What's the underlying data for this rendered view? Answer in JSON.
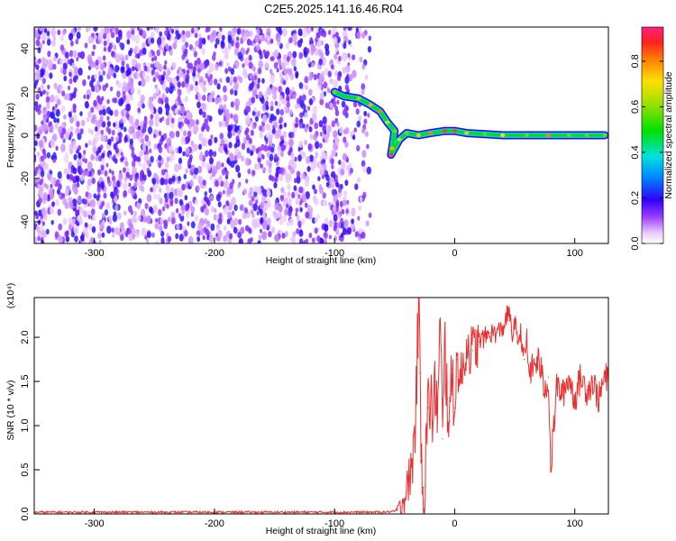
{
  "figure_title": "C2E5.2025.141.16.46.R04",
  "chart_data": [
    {
      "type": "heatmap",
      "title": "",
      "xlabel": "Height of straight line (km)",
      "ylabel": "Frequency (Hz)",
      "xlim": [
        -350,
        128
      ],
      "ylim": [
        -50,
        50
      ],
      "xticks": [
        -300,
        -200,
        -100,
        0,
        100
      ],
      "yticks": [
        -40,
        -20,
        0,
        20,
        40
      ],
      "xtick_labels": [
        "-300",
        "-200",
        "-100",
        "0",
        "100"
      ],
      "ytick_labels": [
        "-40",
        "-20",
        "0",
        "20",
        "40"
      ],
      "colorbar": {
        "label": "Normalized spectral amplitude",
        "range": [
          0,
          0.95
        ],
        "ticks": [
          0.0,
          0.2,
          0.4,
          0.6,
          0.8
        ],
        "tick_labels": [
          "0.0",
          "0.2",
          "0.4",
          "0.6",
          "0.8"
        ],
        "colormap": "rainbow-to-red"
      },
      "noise_region": {
        "x": [
          -350,
          -70
        ],
        "y": [
          -50,
          50
        ],
        "amplitude": [
          0.05,
          0.2
        ]
      },
      "ridge": [
        {
          "x": -100,
          "y": 20,
          "amp": 0.6
        },
        {
          "x": -92,
          "y": 18,
          "amp": 0.5
        },
        {
          "x": -80,
          "y": 17,
          "amp": 0.65
        },
        {
          "x": -70,
          "y": 14,
          "amp": 0.8
        },
        {
          "x": -62,
          "y": 11,
          "amp": 0.85
        },
        {
          "x": -56,
          "y": 6,
          "amp": 0.7
        },
        {
          "x": -50,
          "y": 2,
          "amp": 0.6
        },
        {
          "x": -52,
          "y": -6,
          "amp": 0.8
        },
        {
          "x": -53,
          "y": -9,
          "amp": 0.9
        },
        {
          "x": -46,
          "y": -2,
          "amp": 0.7
        },
        {
          "x": -40,
          "y": 1,
          "amp": 0.6
        },
        {
          "x": -30,
          "y": 0,
          "amp": 0.7
        },
        {
          "x": -20,
          "y": 1,
          "amp": 0.85
        },
        {
          "x": -8,
          "y": 2,
          "amp": 0.9
        },
        {
          "x": 0,
          "y": 2,
          "amp": 0.9
        },
        {
          "x": 10,
          "y": 1,
          "amp": 0.7
        },
        {
          "x": 25,
          "y": 0.5,
          "amp": 0.6
        },
        {
          "x": 40,
          "y": 0,
          "amp": 0.75
        },
        {
          "x": 60,
          "y": 0,
          "amp": 0.6
        },
        {
          "x": 78,
          "y": 0,
          "amp": 0.85
        },
        {
          "x": 95,
          "y": 0,
          "amp": 0.6
        },
        {
          "x": 110,
          "y": 0,
          "amp": 0.6
        },
        {
          "x": 125,
          "y": 0,
          "amp": 0.6
        }
      ]
    },
    {
      "type": "line",
      "title": "",
      "xlabel": "Height of straight line (km)",
      "ylabel": "SNR (10 * v/v)",
      "y_multiplier": "(x10⁴)",
      "xlim": [
        -350,
        128
      ],
      "ylim": [
        0,
        2.45
      ],
      "xticks": [
        -300,
        -200,
        -100,
        0,
        100
      ],
      "yticks": [
        0.0,
        0.5,
        1.0,
        1.5,
        2.0
      ],
      "xtick_labels": [
        "-300",
        "-200",
        "-100",
        "0",
        "100"
      ],
      "ytick_labels": [
        "0.0",
        "0.5",
        "1.0",
        "1.5",
        "2.0"
      ],
      "series": [
        {
          "color": "#e83030",
          "x": [
            -350,
            -60,
            -50,
            -45,
            -40,
            -35,
            -33,
            -31,
            -30,
            -29,
            -28,
            -27,
            -26,
            -25,
            -24,
            -22,
            -20,
            -18,
            -16,
            -14,
            -12,
            -10,
            -8,
            -6,
            -4,
            -2,
            0,
            2,
            5,
            10,
            15,
            20,
            25,
            30,
            35,
            40,
            45,
            48,
            50,
            52,
            55,
            58,
            60,
            62,
            65,
            70,
            75,
            78,
            80,
            85,
            90,
            95,
            100,
            105,
            110,
            115,
            120,
            125,
            128
          ],
          "y": [
            0.02,
            0.02,
            0.03,
            0.08,
            0.25,
            0.6,
            1.0,
            1.85,
            2.45,
            1.6,
            1.0,
            0.6,
            0.3,
            0.15,
            0.7,
            1.2,
            1.35,
            1.0,
            1.45,
            1.2,
            2.15,
            0.85,
            1.9,
            1.3,
            1.05,
            1.65,
            1.2,
            1.75,
            1.5,
            1.9,
            1.85,
            1.95,
            2.0,
            2.05,
            2.05,
            2.1,
            2.3,
            2.0,
            2.2,
            1.95,
            2.05,
            1.75,
            1.95,
            1.6,
            1.65,
            1.75,
            1.4,
            1.55,
            0.5,
            1.45,
            1.35,
            1.55,
            1.3,
            1.55,
            1.4,
            1.5,
            1.3,
            1.55,
            1.5
          ]
        }
      ]
    }
  ]
}
